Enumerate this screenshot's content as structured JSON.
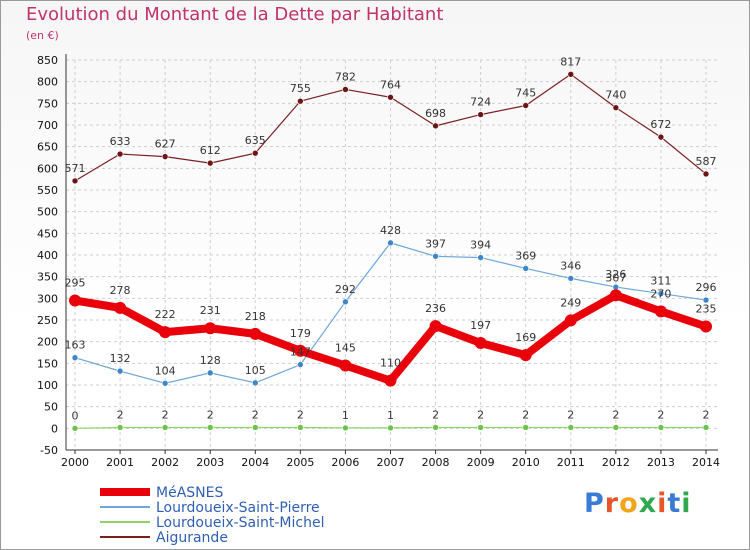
{
  "header": {
    "title": "Evolution du Montant de la Dette par Habitant",
    "subtitle": "(en €)"
  },
  "logo": {
    "text": "Proxiti",
    "colors": [
      "#3a7bd5",
      "#e8552b",
      "#f2a51a",
      "#2fa84f",
      "#e8552b",
      "#3a7bd5",
      "#2fa84f"
    ]
  },
  "chart_data": {
    "type": "line",
    "categories": [
      "2000",
      "2001",
      "2002",
      "2003",
      "2004",
      "2005",
      "2006",
      "2007",
      "2008",
      "2009",
      "2010",
      "2011",
      "2012",
      "2013",
      "2014"
    ],
    "ylim": [
      -50,
      850
    ],
    "yticks": [
      -50,
      0,
      50,
      100,
      150,
      200,
      250,
      300,
      350,
      400,
      450,
      500,
      550,
      600,
      650,
      700,
      750,
      800,
      850
    ],
    "grid": true,
    "legend_position": "bottom-left",
    "series": [
      {
        "name": "MéASNES",
        "color": "#e8000b",
        "point_color": "#e8000b",
        "labels": [
          "295",
          "278",
          "222",
          "231",
          "218",
          "179",
          "145",
          "110",
          "236",
          "197",
          "169",
          "249",
          "307",
          "270",
          "235"
        ],
        "values": [
          295,
          278,
          222,
          231,
          218,
          179,
          145,
          110,
          236,
          197,
          169,
          249,
          307,
          270,
          235
        ]
      },
      {
        "name": "Lourdoueix-Saint-Pierre",
        "color": "#6ea6d8",
        "point_color": "#3d86c9",
        "labels": [
          "163",
          "132",
          "104",
          "128",
          "105",
          "147",
          "292",
          "428",
          "397",
          "394",
          "369",
          "346",
          "326",
          "311",
          "296"
        ],
        "values": [
          163,
          132,
          104,
          128,
          105,
          147,
          292,
          428,
          397,
          394,
          369,
          346,
          326,
          311,
          296
        ]
      },
      {
        "name": "Lourdoueix-Saint-Michel",
        "color": "#8fd16a",
        "point_color": "#6cc24a",
        "labels": [
          "0",
          "2",
          "2",
          "2",
          "2",
          "2",
          "1",
          "1",
          "2",
          "2",
          "2",
          "2",
          "2",
          "2",
          "2"
        ],
        "values": [
          0,
          2,
          2,
          2,
          2,
          2,
          1,
          1,
          2,
          2,
          2,
          2,
          2,
          2,
          2
        ]
      },
      {
        "name": "Aigurande",
        "color": "#7a1f1f",
        "point_color": "#6b1515",
        "labels": [
          "571",
          "633",
          "627",
          "612",
          "635",
          "755",
          "782",
          "764",
          "698",
          "724",
          "745",
          "817",
          "740",
          "672",
          "587"
        ],
        "values": [
          571,
          633,
          627,
          612,
          635,
          755,
          782,
          764,
          698,
          724,
          745,
          817,
          740,
          672,
          587
        ]
      }
    ]
  }
}
